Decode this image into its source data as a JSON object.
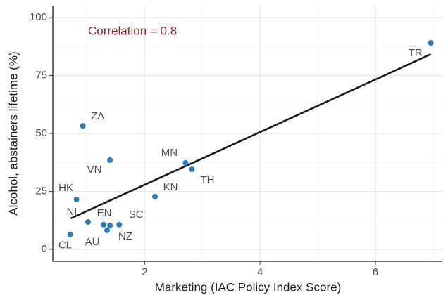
{
  "chart_data": {
    "type": "scatter",
    "xlabel": "Marketing (IAC Policy Index Score)",
    "ylabel": "Alcohol, abstainers lifetime (%)",
    "annotation": "Correlation = 0.8",
    "annotation_color": "#8b2331",
    "color": "#2b7bba",
    "labels": [
      "TR",
      "ZA",
      "VN",
      "MN",
      "TH",
      "KN",
      "HK",
      "NI",
      "EN",
      "SC",
      "AU",
      "NZ",
      "CL"
    ],
    "x": [
      6.96,
      0.93,
      1.4,
      2.71,
      2.82,
      2.18,
      0.82,
      1.02,
      1.29,
      1.56,
      1.4,
      1.35,
      0.71
    ],
    "y": [
      89.1,
      53.3,
      38.5,
      37.3,
      34.5,
      22.7,
      21.5,
      11.8,
      10.6,
      10.6,
      10.3,
      8.2,
      6.4
    ],
    "fit": {
      "color": "#1a1a1a",
      "x": [
        0.72,
        6.96
      ],
      "y": [
        13.3,
        84.2
      ]
    },
    "xlim": [
      0.41,
      7.16
    ],
    "xticks": [
      2,
      4,
      6
    ],
    "ylim": [
      -5.2,
      105.2
    ],
    "yticks": [
      0,
      25,
      50,
      75,
      100
    ],
    "grid": true
  }
}
